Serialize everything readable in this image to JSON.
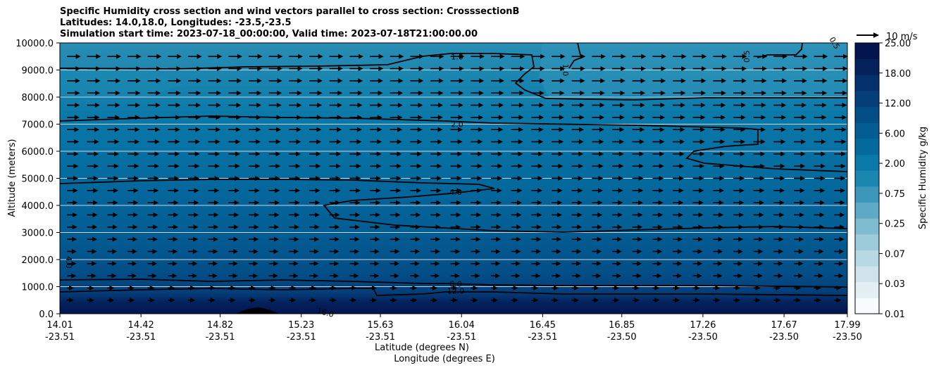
{
  "chart_data": {
    "type": "contourf",
    "title_lines": [
      "Specific Humidity cross section and wind vectors parallel to cross section: CrosssectionB",
      "Latitudes: 14.0,18.0, Longitudes: -23.5,-23.5",
      "Simulation start time: 2023-07-18_00:00:00, Valid time: 2023-07-18T21:00:00.00"
    ],
    "xlabel_lines": [
      "Latitude (degrees N)",
      "Longitude (degrees E)"
    ],
    "ylabel": "Altitude (meters)",
    "ylim": [
      0,
      10000
    ],
    "x_ticks": [
      {
        "lat": "14.01",
        "lon": "-23.51"
      },
      {
        "lat": "14.42",
        "lon": "-23.51"
      },
      {
        "lat": "14.82",
        "lon": "-23.51"
      },
      {
        "lat": "15.23",
        "lon": "-23.51"
      },
      {
        "lat": "15.63",
        "lon": "-23.51"
      },
      {
        "lat": "16.04",
        "lon": "-23.51"
      },
      {
        "lat": "16.45",
        "lon": "-23.51"
      },
      {
        "lat": "16.85",
        "lon": "-23.50"
      },
      {
        "lat": "17.26",
        "lon": "-23.50"
      },
      {
        "lat": "17.67",
        "lon": "-23.50"
      },
      {
        "lat": "17.99",
        "lon": "-23.50"
      }
    ],
    "y_ticks": [
      "0.0",
      "1000.0",
      "2000.0",
      "3000.0",
      "4000.0",
      "5000.0",
      "6000.0",
      "7000.0",
      "8000.0",
      "9000.0",
      "10000.0"
    ],
    "colorbar": {
      "label": "Specific Humidity g/kg",
      "tick_labels": [
        "0.01",
        "0.03",
        "0.07",
        "0.25",
        "0.75",
        "2.00",
        "6.00",
        "12.00",
        "18.00",
        "25.00"
      ],
      "colors": [
        "#f7fbfd",
        "#e3eff3",
        "#cfe4ec",
        "#b8d8e3",
        "#9dcbda",
        "#7fbcd0",
        "#5eaac6",
        "#3d97bb",
        "#1b86b0",
        "#0a78a8",
        "#046a9e",
        "#035d93",
        "#034e87",
        "#043f7a",
        "#04306b",
        "#04215c",
        "#03154f"
      ]
    },
    "contour_labels": [
      {
        "text": "1.0",
        "alt_m": 9500
      },
      {
        "text": "0.5",
        "alt_m": 9500
      },
      {
        "text": "1.0",
        "alt_m": 9000
      },
      {
        "text": "0.5",
        "alt_m": 10000
      },
      {
        "text": "2.0",
        "alt_m": 7000
      },
      {
        "text": "4.0",
        "alt_m": 4500
      },
      {
        "text": "4.0",
        "alt_m": 1900
      },
      {
        "text": "8.0",
        "alt_m": 1100
      },
      {
        "text": "12.0",
        "alt_m": 850
      },
      {
        "text": "16.0",
        "alt_m": 50
      }
    ],
    "wind_reference": {
      "label": "10 m/s"
    },
    "wind_direction": "parallel, pointing toward increasing latitude",
    "grid": "horizontal lines at each y tick"
  }
}
